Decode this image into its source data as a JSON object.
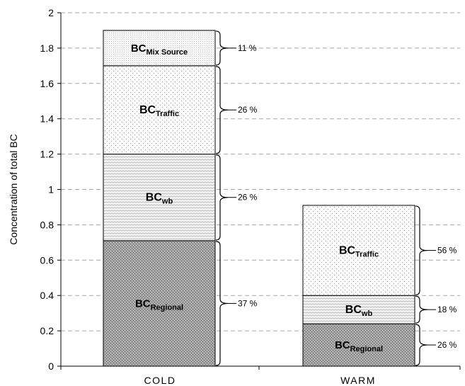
{
  "chart_data": {
    "type": "bar",
    "stacked": true,
    "ylabel": "Concentration of total  BC",
    "xlabel": "",
    "ylim": [
      0,
      2
    ],
    "yticks": [
      "0",
      "0.2",
      "0.4",
      "0.6",
      "0.8",
      "1",
      "1.2",
      "1.4",
      "1.6",
      "1.8",
      "2"
    ],
    "grid": true,
    "categories": [
      "COLD",
      "WARM"
    ],
    "series": [
      {
        "label_base": "BC",
        "label_sub": "Regional",
        "pattern": "regional",
        "values": [
          0.71,
          0.24
        ],
        "percent_labels": [
          "37 %",
          "26 %"
        ]
      },
      {
        "label_base": "BC",
        "label_sub": "wb",
        "pattern": "wb",
        "values": [
          0.49,
          0.16
        ],
        "percent_labels": [
          "26 %",
          "18 %"
        ]
      },
      {
        "label_base": "BC",
        "label_sub": "Traffic",
        "pattern": "traffic",
        "values": [
          0.5,
          0.51
        ],
        "percent_labels": [
          "26 %",
          "56 %"
        ]
      },
      {
        "label_base": "BC",
        "label_sub": "Mix Source",
        "pattern": "mix",
        "values": [
          0.2,
          null
        ],
        "percent_labels": [
          "11 %",
          null
        ]
      }
    ],
    "colors": {
      "regional_fill": "#a9a9a9",
      "wb_fill": "#ececec",
      "traffic_fill": "#ffffff",
      "mix_fill": "#f4f4f4",
      "grid": "#a6a6a6"
    }
  }
}
